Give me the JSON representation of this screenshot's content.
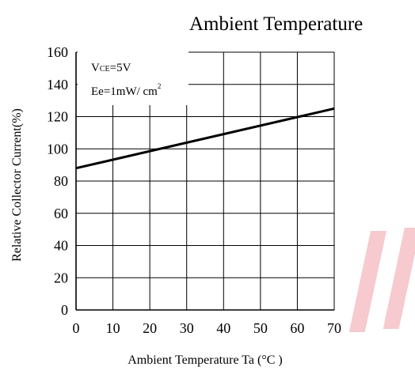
{
  "chart_data": {
    "type": "line",
    "title": "Ambient Temperature",
    "xlabel": "Ambient Temperature Ta (°C )",
    "ylabel": "Relative Collector Current(%)",
    "xlim": [
      0,
      70
    ],
    "ylim": [
      0,
      160
    ],
    "x_ticks": [
      0,
      10,
      20,
      30,
      40,
      50,
      60,
      70
    ],
    "y_ticks": [
      0,
      20,
      40,
      60,
      80,
      100,
      120,
      140,
      160
    ],
    "grid": true,
    "series": [
      {
        "x": [
          0,
          70
        ],
        "y": [
          88,
          125
        ]
      }
    ],
    "annotations": {
      "vce_symbol": "V",
      "vce_subscript": "CE",
      "vce_value": "=5V",
      "ee_text": "Ee=1mW/ cm",
      "ee_superscript": "2"
    }
  },
  "colors": {
    "line": "#000000",
    "grid": "#000000",
    "watermark": "#e8263a"
  }
}
